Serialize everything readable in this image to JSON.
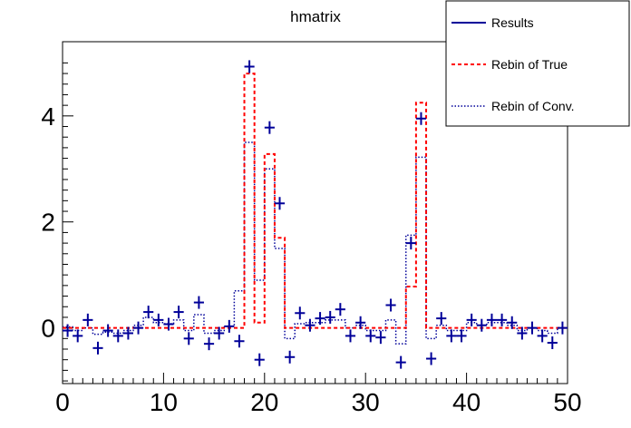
{
  "chart_data": {
    "type": "line",
    "title": "hmatrix",
    "xlabel": "",
    "ylabel": "",
    "xlim": [
      0,
      50
    ],
    "ylim": [
      -1.05,
      5.4
    ],
    "x_ticks": [
      0,
      10,
      20,
      30,
      40,
      50
    ],
    "y_ticks": [
      0,
      2,
      4
    ],
    "grid": false,
    "legend_position": "top-right",
    "legend": [
      "Results",
      "Rebin of True",
      "Rebin of Conv."
    ],
    "colors": {
      "results": "#000099",
      "true": "#ff0000",
      "conv": "#000099"
    },
    "bin_centers": [
      0.5,
      1.5,
      2.5,
      3.5,
      4.5,
      5.5,
      6.5,
      7.5,
      8.5,
      9.5,
      10.5,
      11.5,
      12.5,
      13.5,
      14.5,
      15.5,
      16.5,
      17.5,
      18.5,
      19.5,
      20.5,
      21.5,
      22.5,
      23.5,
      24.5,
      25.5,
      26.5,
      27.5,
      28.5,
      29.5,
      30.5,
      31.5,
      32.5,
      33.5,
      34.5,
      35.5,
      36.5,
      37.5,
      38.5,
      39.5,
      40.5,
      41.5,
      42.5,
      43.5,
      44.5,
      45.5,
      46.5,
      47.5,
      48.5,
      49.5
    ],
    "series": [
      {
        "name": "Results",
        "style": "points-with-errors",
        "values": [
          -0.05,
          -0.15,
          0.15,
          -0.38,
          -0.05,
          -0.15,
          -0.1,
          0.0,
          0.3,
          0.15,
          0.07,
          0.3,
          -0.2,
          0.48,
          -0.3,
          -0.1,
          0.03,
          -0.25,
          4.93,
          -0.6,
          3.78,
          2.35,
          -0.55,
          0.28,
          0.05,
          0.18,
          0.2,
          0.35,
          -0.15,
          0.1,
          -0.15,
          -0.18,
          0.43,
          -0.65,
          1.6,
          3.95,
          -0.58,
          0.18,
          -0.15,
          -0.15,
          0.15,
          0.05,
          0.15,
          0.15,
          0.1,
          -0.1,
          0.0,
          -0.15,
          -0.28,
          0.0
        ],
        "y_errors": [
          0.12,
          0.12,
          0.12,
          0.12,
          0.12,
          0.12,
          0.12,
          0.12,
          0.12,
          0.12,
          0.12,
          0.12,
          0.12,
          0.12,
          0.12,
          0.12,
          0.12,
          0.12,
          0.12,
          0.12,
          0.12,
          0.12,
          0.12,
          0.12,
          0.12,
          0.12,
          0.12,
          0.12,
          0.12,
          0.12,
          0.12,
          0.12,
          0.12,
          0.12,
          0.12,
          0.12,
          0.12,
          0.12,
          0.12,
          0.12,
          0.12,
          0.12,
          0.12,
          0.12,
          0.12,
          0.12,
          0.12,
          0.12,
          0.12,
          0.12
        ]
      },
      {
        "name": "Rebin of True",
        "style": "histogram-dashed",
        "values": [
          0,
          0,
          0,
          0,
          0,
          0,
          0,
          0,
          0,
          0,
          0,
          0,
          0,
          0,
          0,
          0,
          0,
          0,
          4.8,
          0.1,
          3.28,
          1.7,
          0,
          0,
          0,
          0,
          0,
          0,
          0,
          0,
          0,
          0,
          0,
          0,
          0.78,
          4.25,
          0,
          0,
          0,
          0,
          0,
          0,
          0,
          0,
          0,
          0,
          0,
          0,
          0,
          0
        ]
      },
      {
        "name": "Rebin of Conv.",
        "style": "histogram-dotted",
        "values": [
          0.02,
          -0.05,
          0.0,
          -0.12,
          -0.08,
          -0.1,
          -0.05,
          0.05,
          0.2,
          0.1,
          0.08,
          0.15,
          -0.05,
          0.25,
          -0.1,
          -0.05,
          0.03,
          0.7,
          3.5,
          0.9,
          3.0,
          1.5,
          -0.2,
          0.08,
          0.1,
          0.1,
          0.15,
          0.15,
          0.0,
          0.05,
          -0.05,
          -0.05,
          0.15,
          -0.3,
          1.75,
          3.22,
          -0.2,
          0.05,
          -0.05,
          -0.05,
          0.1,
          0.05,
          0.1,
          0.1,
          0.05,
          -0.05,
          0.0,
          -0.05,
          -0.1,
          0.0
        ]
      }
    ]
  }
}
